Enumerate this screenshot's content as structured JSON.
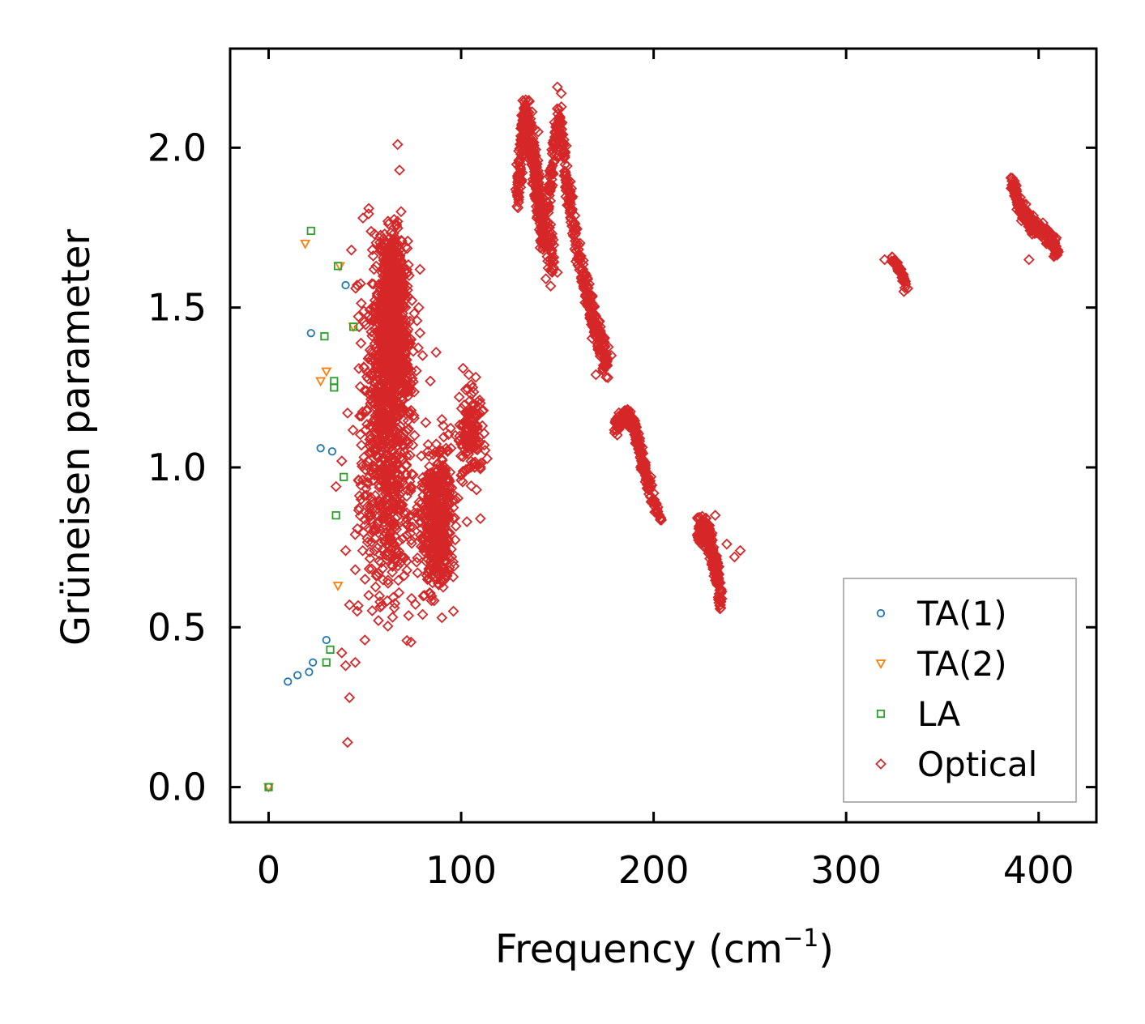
{
  "chart_data": {
    "type": "scatter",
    "title": "",
    "xlabel": "Frequency (cm",
    "xlabel_sup": "−1",
    "xlabel_close": ")",
    "ylabel": "Grüneisen parameter",
    "xlim": [
      -20,
      430
    ],
    "ylim": [
      -0.11,
      2.31
    ],
    "xticks": [
      0,
      100,
      200,
      300,
      400
    ],
    "xtick_labels": [
      "0",
      "100",
      "200",
      "300",
      "400"
    ],
    "yticks": [
      0.0,
      0.5,
      1.0,
      1.5,
      2.0
    ],
    "ytick_labels": [
      "0.0",
      "0.5",
      "1.0",
      "1.5",
      "2.0"
    ],
    "grid": false,
    "legend_position": "bottom-right",
    "series": [
      {
        "name": "TA(1)",
        "marker": "circle",
        "color": "#1f77b4",
        "points": [
          [
            0,
            0.0
          ],
          [
            10,
            0.33
          ],
          [
            15,
            0.35
          ],
          [
            21,
            0.36
          ],
          [
            23,
            0.39
          ],
          [
            22,
            1.42
          ],
          [
            27,
            1.06
          ],
          [
            30,
            0.46
          ],
          [
            33,
            1.05
          ],
          [
            40,
            1.57
          ]
        ]
      },
      {
        "name": "TA(2)",
        "marker": "triangle-down",
        "color": "#ff7f0e",
        "points": [
          [
            0,
            0.0
          ],
          [
            19,
            1.7
          ],
          [
            27,
            1.27
          ],
          [
            30,
            1.3
          ],
          [
            36,
            0.63
          ],
          [
            37,
            1.63
          ],
          [
            44,
            1.44
          ]
        ]
      },
      {
        "name": "LA",
        "marker": "square",
        "color": "#2ca02c",
        "points": [
          [
            0,
            0.0
          ],
          [
            22,
            1.74
          ],
          [
            29,
            1.41
          ],
          [
            30,
            0.39
          ],
          [
            32,
            0.43
          ],
          [
            34,
            1.27
          ],
          [
            34,
            1.25
          ],
          [
            35,
            0.85
          ],
          [
            36,
            1.63
          ],
          [
            39,
            0.97
          ],
          [
            44,
            1.44
          ]
        ]
      },
      {
        "name": "Optical",
        "marker": "diamond",
        "color": "#d62728",
        "scatter_points": [
          [
            67,
            2.01
          ],
          [
            68,
            1.93
          ],
          [
            41,
            0.14
          ],
          [
            42,
            0.28
          ],
          [
            45,
            0.39
          ],
          [
            50,
            0.46
          ],
          [
            38,
            0.42
          ],
          [
            40,
            0.38
          ],
          [
            46,
            0.55
          ],
          [
            52,
            0.6
          ],
          [
            42,
            0.57
          ],
          [
            45,
            0.68
          ],
          [
            56,
            0.66
          ],
          [
            40,
            0.74
          ],
          [
            55,
            0.74
          ],
          [
            48,
            0.9
          ],
          [
            35,
            0.94
          ],
          [
            38,
            1.02
          ],
          [
            41,
            1.17
          ],
          [
            43,
            1.68
          ],
          [
            46,
            1.57
          ],
          [
            49,
            1.78
          ],
          [
            52,
            1.81
          ],
          [
            55,
            1.73
          ],
          [
            47,
            1.44
          ],
          [
            62,
            1.77
          ],
          [
            73,
            1.6
          ],
          [
            74,
            1.4
          ],
          [
            78,
            1.5
          ],
          [
            80,
            1.35
          ],
          [
            84,
            1.27
          ],
          [
            87,
            1.36
          ],
          [
            80,
            0.54
          ],
          [
            81,
            0.6
          ],
          [
            90,
            0.53
          ],
          [
            96,
            0.55
          ],
          [
            100,
            0.96
          ],
          [
            103,
            0.83
          ],
          [
            105,
            1.0
          ],
          [
            107,
            1.0
          ],
          [
            108,
            0.93
          ],
          [
            110,
            0.84
          ],
          [
            111,
            1.13
          ],
          [
            112,
            1.07
          ],
          [
            101,
            1.31
          ],
          [
            104,
            1.29
          ],
          [
            99,
            1.22
          ],
          [
            106,
            1.25
          ],
          [
            90,
            1.15
          ],
          [
            93,
            1.05
          ],
          [
            97,
            1.1
          ],
          [
            245,
            0.74
          ],
          [
            242,
            0.72
          ],
          [
            238,
            0.76
          ],
          [
            232,
            0.85
          ],
          [
            178,
            1.35
          ],
          [
            175,
            1.33
          ],
          [
            170,
            1.29
          ],
          [
            180,
            1.14
          ],
          [
            144,
            1.59
          ],
          [
            150,
            1.61
          ],
          [
            135,
            1.98
          ],
          [
            140,
            2.05
          ],
          [
            150,
            2.19
          ],
          [
            152,
            2.17
          ],
          [
            395,
            1.65
          ],
          [
            410,
            1.68
          ],
          [
            405,
            1.7
          ],
          [
            320,
            1.65
          ],
          [
            330,
            1.55
          ],
          [
            332,
            1.56
          ]
        ],
        "clusters": [
          {
            "x_range": [
              42,
              82
            ],
            "y_range": [
              0.35,
              1.9
            ],
            "count": 900
          },
          {
            "x_range": [
              55,
              75
            ],
            "y_range": [
              1.1,
              1.85
            ],
            "count": 700
          },
          {
            "x_range": [
              75,
              100
            ],
            "y_range": [
              0.5,
              1.2
            ],
            "count": 450
          },
          {
            "x_range": [
              96,
              115
            ],
            "y_range": [
              0.9,
              1.32
            ],
            "count": 140
          }
        ],
        "paths": [
          {
            "nodes": [
              [
                129,
                1.85
              ],
              [
                133,
                2.1
              ],
              [
                138,
                1.95
              ],
              [
                142,
                1.75
              ],
              [
                148,
                1.65
              ]
            ],
            "spread": 0.12,
            "count": 420
          },
          {
            "nodes": [
              [
                145,
                1.82
              ],
              [
                150,
                2.12
              ],
              [
                155,
                1.9
              ],
              [
                160,
                1.7
              ],
              [
                167,
                1.5
              ],
              [
                172,
                1.4
              ],
              [
                176,
                1.32
              ]
            ],
            "spread": 0.09,
            "count": 380
          },
          {
            "nodes": [
              [
                180,
                1.13
              ],
              [
                186,
                1.16
              ],
              [
                190,
                1.13
              ],
              [
                193,
                1.05
              ],
              [
                197,
                0.95
              ],
              [
                204,
                0.83
              ]
            ],
            "spread": 0.04,
            "count": 230
          },
          {
            "nodes": [
              [
                223,
                0.8
              ],
              [
                228,
                0.8
              ],
              [
                232,
                0.7
              ],
              [
                235,
                0.58
              ]
            ],
            "spread": 0.07,
            "count": 260
          },
          {
            "nodes": [
              [
                324,
                1.65
              ],
              [
                328,
                1.62
              ],
              [
                331,
                1.57
              ]
            ],
            "spread": 0.02,
            "count": 45
          },
          {
            "nodes": [
              [
                386,
                1.9
              ],
              [
                390,
                1.82
              ],
              [
                395,
                1.77
              ],
              [
                402,
                1.74
              ],
              [
                410,
                1.68
              ]
            ],
            "spread": 0.04,
            "count": 230
          }
        ]
      }
    ]
  }
}
